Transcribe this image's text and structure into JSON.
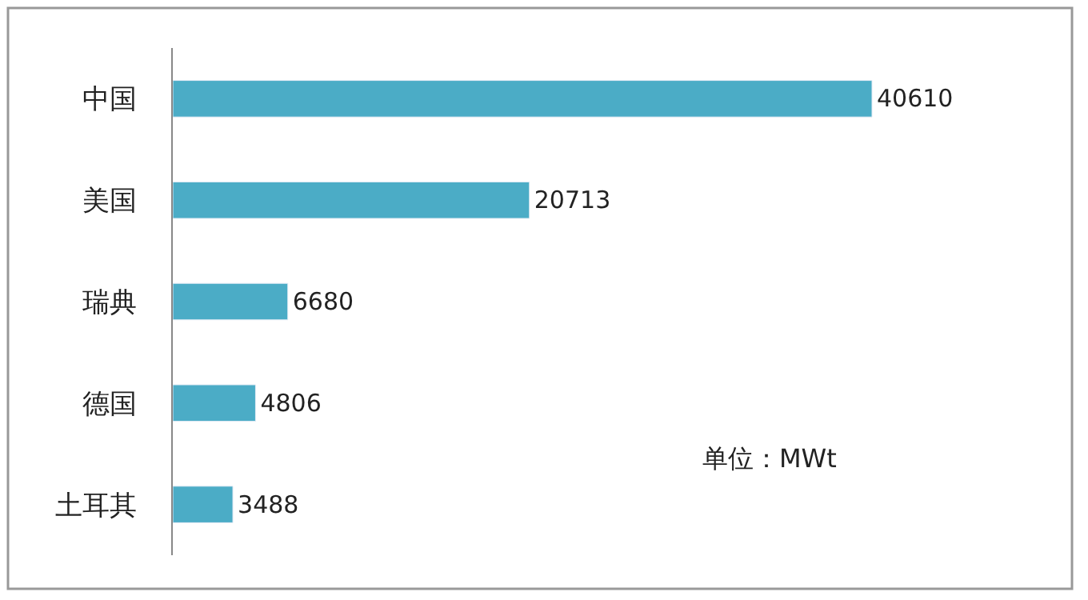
{
  "chart_data": {
    "type": "bar",
    "orientation": "horizontal",
    "categories": [
      "中国",
      "美国",
      "瑞典",
      "德国",
      "土耳其"
    ],
    "values": [
      40610,
      20713,
      6680,
      4806,
      3488
    ],
    "color": "#4bacc6",
    "data_labels": true,
    "annotations": [
      "单位：MWt"
    ]
  }
}
